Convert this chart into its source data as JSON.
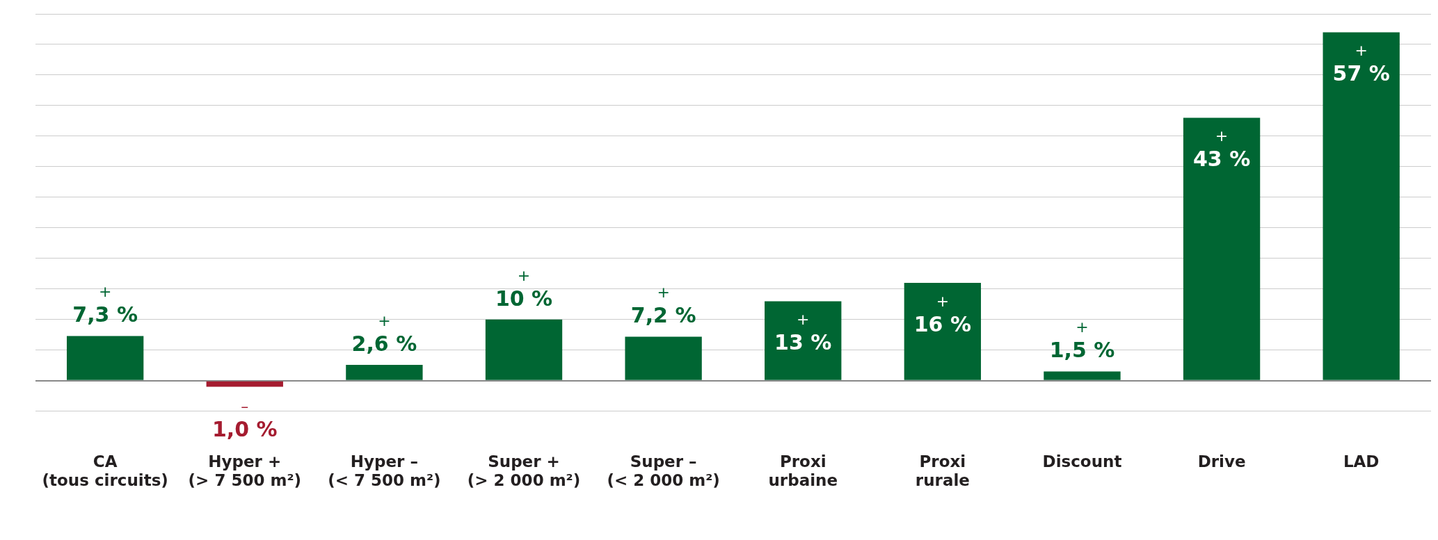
{
  "chart_data": {
    "type": "bar",
    "categories": [
      "CA\n(tous circuits)",
      "Hyper +\n(> 7 500 m²)",
      "Hyper –\n(< 7 500 m²)",
      "Super +\n(> 2 000 m²)",
      "Super –\n(< 2 000 m²)",
      "Proxi\nurbaine",
      "Proxi\nrurale",
      "Discount",
      "Drive",
      "LAD"
    ],
    "values": [
      7.3,
      -1.0,
      2.6,
      10,
      7.2,
      13,
      16,
      1.5,
      43,
      57
    ],
    "colors": [
      "#006633",
      "#a51c30",
      "#006633",
      "#006633",
      "#006633",
      "#006633",
      "#006633",
      "#006633",
      "#006633",
      "#006633"
    ],
    "value_labels": [
      "+ 7,3 %",
      "– 1,0 %",
      "+ 2,6 %",
      "+ 10 %",
      "+ 7,2 %",
      "+ 13 %",
      "+ 16 %",
      "+ 1,5 %",
      "+ 43 %",
      "+ 57 %"
    ],
    "ylim": [
      -5,
      60
    ],
    "yticks": [
      {
        "value": -5,
        "label": null
      },
      {
        "value": 0,
        "label": null
      },
      {
        "value": 5,
        "label": null
      },
      {
        "value": 10,
        "label": null
      },
      {
        "value": 15,
        "label": null
      },
      {
        "value": 20,
        "label": null
      },
      {
        "value": 25,
        "label": null
      },
      {
        "value": 30,
        "label": null
      },
      {
        "value": 35,
        "label": null
      },
      {
        "value": 40,
        "label": null
      },
      {
        "value": 45,
        "label": null
      },
      {
        "value": 50,
        "label": null
      },
      {
        "value": 55,
        "label": null
      },
      {
        "value": 60,
        "label": null
      }
    ],
    "grid": "y",
    "tick_labels": "x"
  }
}
